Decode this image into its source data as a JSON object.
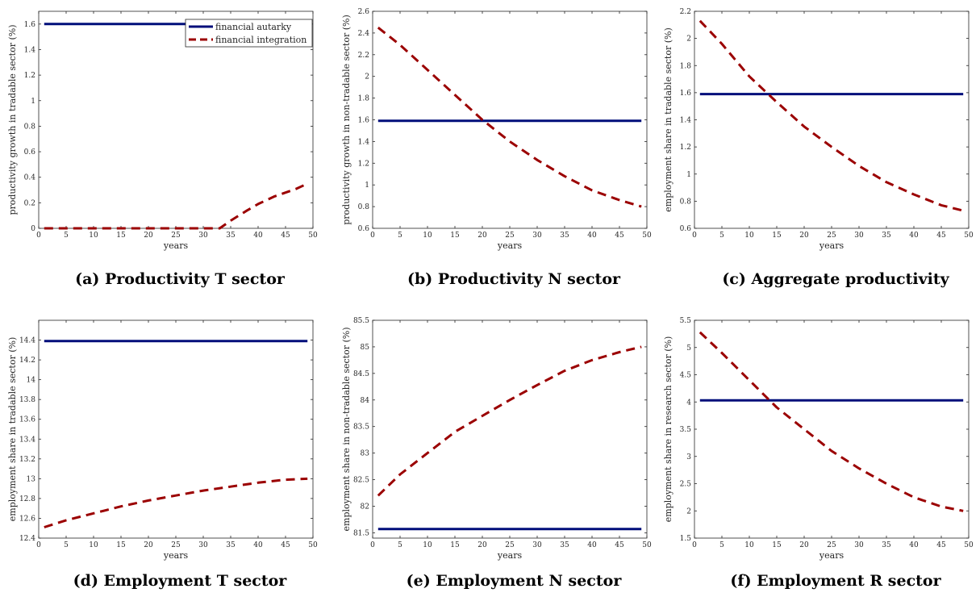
{
  "legend": {
    "autarky_label": "financial autarky",
    "integration_label": "financial integration",
    "autarky_color": "#000e7a",
    "integration_color": "#9b0000"
  },
  "chart_data": [
    {
      "type": "line",
      "caption": "(a) Productivity T sector",
      "xlabel": "years",
      "ylabel": "productivity growth in tradable sector (%)",
      "xlim": [
        0,
        50
      ],
      "ylim": [
        0,
        1.7
      ],
      "xticks": [
        0,
        5,
        10,
        15,
        20,
        25,
        30,
        35,
        40,
        45,
        50
      ],
      "yticks": [
        0,
        0.2,
        0.4,
        0.6,
        0.8,
        1,
        1.2,
        1.4,
        1.6
      ],
      "ytick_labels": [
        "0",
        "0.2",
        "0.4",
        "0.6",
        "0.8",
        "1",
        "1.2",
        "1.4",
        "1.6"
      ],
      "legend_position": "top-right",
      "series": [
        {
          "name": "financial autarky",
          "x": [
            1,
            49
          ],
          "y": [
            1.6,
            1.6
          ]
        },
        {
          "name": "financial integration",
          "x": [
            1,
            5,
            10,
            15,
            20,
            25,
            30,
            33,
            35,
            38,
            40,
            43,
            45,
            47,
            49
          ],
          "y": [
            0,
            0,
            0,
            0,
            0,
            0,
            0,
            0,
            0.06,
            0.14,
            0.19,
            0.25,
            0.28,
            0.31,
            0.35
          ]
        }
      ]
    },
    {
      "type": "line",
      "caption": "(b) Productivity N sector",
      "xlabel": "years",
      "ylabel": "productivity growth in non-tradable sector (%)",
      "xlim": [
        0,
        50
      ],
      "ylim": [
        0.6,
        2.6
      ],
      "xticks": [
        0,
        5,
        10,
        15,
        20,
        25,
        30,
        35,
        40,
        45,
        50
      ],
      "yticks": [
        0.6,
        0.8,
        1,
        1.2,
        1.4,
        1.6,
        1.8,
        2,
        2.2,
        2.4,
        2.6
      ],
      "ytick_labels": [
        "0.6",
        "0.8",
        "1",
        "1.2",
        "1.4",
        "1.6",
        "1.8",
        "2",
        "2.2",
        "2.4",
        "2.6"
      ],
      "series": [
        {
          "name": "financial autarky",
          "x": [
            1,
            49
          ],
          "y": [
            1.59,
            1.59
          ]
        },
        {
          "name": "financial integration",
          "x": [
            1,
            5,
            10,
            15,
            20,
            25,
            30,
            35,
            40,
            45,
            49
          ],
          "y": [
            2.45,
            2.29,
            2.06,
            1.83,
            1.6,
            1.4,
            1.23,
            1.08,
            0.95,
            0.86,
            0.8
          ]
        }
      ]
    },
    {
      "type": "line",
      "caption": "(c) Aggregate productivity",
      "xlabel": "years",
      "ylabel": "employment share in tradable sector (%)",
      "xlim": [
        0,
        50
      ],
      "ylim": [
        0.6,
        2.2
      ],
      "xticks": [
        0,
        5,
        10,
        15,
        20,
        25,
        30,
        35,
        40,
        45,
        50
      ],
      "yticks": [
        0.6,
        0.8,
        1,
        1.2,
        1.4,
        1.6,
        1.8,
        2,
        2.2
      ],
      "ytick_labels": [
        "0.6",
        "0.8",
        "1",
        "1.2",
        "1.4",
        "1.6",
        "1.8",
        "2",
        "2.2"
      ],
      "series": [
        {
          "name": "financial autarky",
          "x": [
            1,
            49
          ],
          "y": [
            1.59,
            1.59
          ]
        },
        {
          "name": "financial integration",
          "x": [
            1,
            5,
            10,
            15,
            20,
            25,
            30,
            35,
            40,
            45,
            49
          ],
          "y": [
            2.13,
            1.96,
            1.72,
            1.53,
            1.35,
            1.2,
            1.06,
            0.94,
            0.85,
            0.77,
            0.73
          ]
        }
      ]
    },
    {
      "type": "line",
      "caption": "(d) Employment T sector",
      "xlabel": "years",
      "ylabel": "employment share in tradable sector (%)",
      "xlim": [
        0,
        50
      ],
      "ylim": [
        12.4,
        14.6
      ],
      "xticks": [
        0,
        5,
        10,
        15,
        20,
        25,
        30,
        35,
        40,
        45,
        50
      ],
      "yticks": [
        12.4,
        12.6,
        12.8,
        13,
        13.2,
        13.4,
        13.6,
        13.8,
        14,
        14.2,
        14.4
      ],
      "ytick_labels": [
        "12.4",
        "12.6",
        "12.8",
        "13",
        "13.2",
        "13.4",
        "13.6",
        "13.8",
        "14",
        "14.2",
        "14.4"
      ],
      "series": [
        {
          "name": "financial autarky",
          "x": [
            1,
            49
          ],
          "y": [
            14.39,
            14.39
          ]
        },
        {
          "name": "financial integration",
          "x": [
            1,
            5,
            10,
            15,
            20,
            25,
            30,
            35,
            40,
            45,
            49
          ],
          "y": [
            12.51,
            12.58,
            12.65,
            12.72,
            12.78,
            12.83,
            12.88,
            12.92,
            12.96,
            12.99,
            13.0
          ]
        }
      ]
    },
    {
      "type": "line",
      "caption": "(e) Employment N sector",
      "xlabel": "years",
      "ylabel": "employment share in non-tradable sector (%)",
      "xlim": [
        0,
        50
      ],
      "ylim": [
        81.4,
        85.5
      ],
      "xticks": [
        0,
        5,
        10,
        15,
        20,
        25,
        30,
        35,
        40,
        45,
        50
      ],
      "yticks": [
        81.5,
        82,
        82.5,
        83,
        83.5,
        84,
        84.5,
        85,
        85.5
      ],
      "ytick_labels": [
        "81.5",
        "82",
        "82.5",
        "83",
        "83.5",
        "84",
        "84.5",
        "85",
        "85.5"
      ],
      "series": [
        {
          "name": "financial autarky",
          "x": [
            1,
            49
          ],
          "y": [
            81.57,
            81.57
          ]
        },
        {
          "name": "financial integration",
          "x": [
            1,
            5,
            10,
            15,
            20,
            25,
            30,
            35,
            40,
            45,
            49
          ],
          "y": [
            82.2,
            82.6,
            83.0,
            83.4,
            83.7,
            84.0,
            84.28,
            84.55,
            84.75,
            84.9,
            85.0
          ]
        }
      ]
    },
    {
      "type": "line",
      "caption": "(f) Employment R sector",
      "xlabel": "years",
      "ylabel": "employment share in research sector (%)",
      "xlim": [
        0,
        50
      ],
      "ylim": [
        1.5,
        5.5
      ],
      "xticks": [
        0,
        5,
        10,
        15,
        20,
        25,
        30,
        35,
        40,
        45,
        50
      ],
      "yticks": [
        1.5,
        2,
        2.5,
        3,
        3.5,
        4,
        4.5,
        5,
        5.5
      ],
      "ytick_labels": [
        "1.5",
        "2",
        "2.5",
        "3",
        "3.5",
        "4",
        "4.5",
        "5",
        "5.5"
      ],
      "series": [
        {
          "name": "financial autarky",
          "x": [
            1,
            49
          ],
          "y": [
            4.03,
            4.03
          ]
        },
        {
          "name": "financial integration",
          "x": [
            1,
            5,
            10,
            15,
            20,
            25,
            30,
            35,
            40,
            45,
            49
          ],
          "y": [
            5.28,
            4.9,
            4.4,
            3.9,
            3.5,
            3.1,
            2.78,
            2.5,
            2.25,
            2.08,
            2.0
          ]
        }
      ]
    }
  ]
}
